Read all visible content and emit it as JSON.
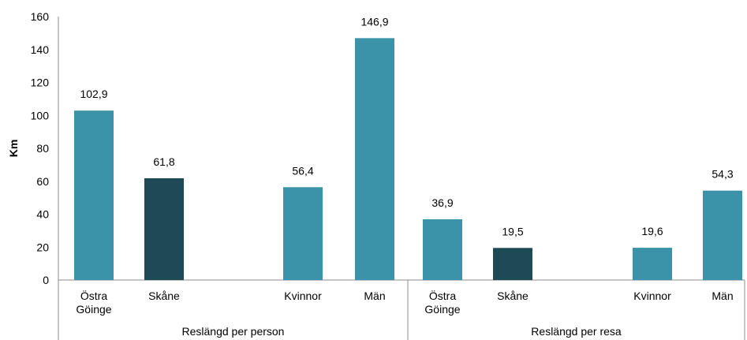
{
  "chart_data": {
    "type": "bar",
    "ylabel": "Km",
    "ylim": [
      0,
      160
    ],
    "yticks": [
      "0",
      "20",
      "40",
      "60",
      "80",
      "100",
      "120",
      "140",
      "160"
    ],
    "grid": false,
    "groups": [
      {
        "name": "Reslängd per person",
        "bars": [
          {
            "category": [
              "Östra",
              "Göinge"
            ],
            "value": 102.9,
            "label": "102,9",
            "color": "#3a93a8"
          },
          {
            "category": [
              "Skåne"
            ],
            "value": 61.8,
            "label": "61,8",
            "color": "#1e4a56"
          },
          {
            "category": [
              "Kvinnor"
            ],
            "value": 56.4,
            "label": "56,4",
            "color": "#3a93a8"
          },
          {
            "category": [
              "Män"
            ],
            "value": 146.9,
            "label": "146,9",
            "color": "#3a93a8"
          }
        ]
      },
      {
        "name": "Reslängd per resa",
        "bars": [
          {
            "category": [
              "Östra",
              "Göinge"
            ],
            "value": 36.9,
            "label": "36,9",
            "color": "#3a93a8"
          },
          {
            "category": [
              "Skåne"
            ],
            "value": 19.5,
            "label": "19,5",
            "color": "#1e4a56"
          },
          {
            "category": [
              "Kvinnor"
            ],
            "value": 19.6,
            "label": "19,6",
            "color": "#3a93a8"
          },
          {
            "category": [
              "Män"
            ],
            "value": 54.3,
            "label": "54,3",
            "color": "#3a93a8"
          }
        ]
      }
    ]
  }
}
